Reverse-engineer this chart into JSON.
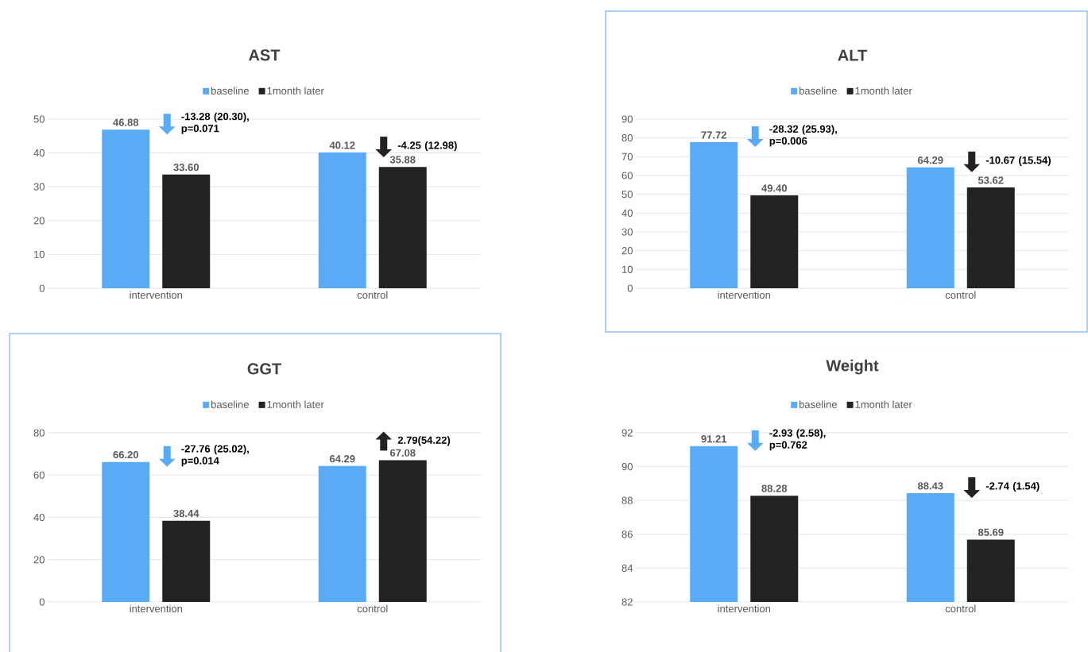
{
  "chart_data": [
    {
      "type": "bar",
      "title": "AST",
      "categories": [
        "intervention",
        "control"
      ],
      "series": [
        {
          "name": "baseline",
          "color": "#5aabf6",
          "values": [
            46.88,
            40.12
          ],
          "value_labels": [
            "46.88",
            "40.12"
          ]
        },
        {
          "name": "1month later",
          "color": "#222222",
          "values": [
            33.6,
            35.88
          ],
          "value_labels": [
            "33.60",
            "35.88"
          ]
        }
      ],
      "ylim": [
        0,
        50
      ],
      "yticks": [
        0,
        10,
        20,
        30,
        40,
        50
      ],
      "grid": "y",
      "legend": "top",
      "annotations": [
        "-13.28 (20.30), p=0.071",
        "-4.25 (12.98)"
      ]
    },
    {
      "type": "bar",
      "title": "ALT",
      "categories": [
        "intervention",
        "control"
      ],
      "series": [
        {
          "name": "baseline",
          "color": "#5aabf6",
          "values": [
            77.72,
            64.29
          ],
          "value_labels": [
            "77.72",
            "64.29"
          ]
        },
        {
          "name": "1month later",
          "color": "#222222",
          "values": [
            49.4,
            53.62
          ],
          "value_labels": [
            "49.40",
            "53.62"
          ]
        }
      ],
      "ylim": [
        0,
        90
      ],
      "yticks": [
        0,
        10,
        20,
        30,
        40,
        50,
        60,
        70,
        80,
        90
      ],
      "grid": "y",
      "legend": "top",
      "annotations": [
        "-28.32 (25.93), p=0.006",
        "-10.67 (15.54)"
      ]
    },
    {
      "type": "bar",
      "title": "GGT",
      "categories": [
        "intervention",
        "control"
      ],
      "series": [
        {
          "name": "baseline",
          "color": "#5aabf6",
          "values": [
            66.2,
            64.29
          ],
          "value_labels": [
            "66.20",
            "64.29"
          ]
        },
        {
          "name": "1month later",
          "color": "#222222",
          "values": [
            38.44,
            67.08
          ],
          "value_labels": [
            "38.44",
            "67.08"
          ]
        }
      ],
      "ylim": [
        0,
        80
      ],
      "yticks": [
        0,
        20,
        40,
        60,
        80
      ],
      "grid": "y",
      "legend": "top",
      "annotations": [
        "-27.76 (25.02), p=0.014",
        "2.79(54.22)"
      ]
    },
    {
      "type": "bar",
      "title": "Weight",
      "categories": [
        "intervention",
        "control"
      ],
      "series": [
        {
          "name": "baseline",
          "color": "#5aabf6",
          "values": [
            91.21,
            88.43
          ],
          "value_labels": [
            "91.21",
            "88.43"
          ]
        },
        {
          "name": "1month later",
          "color": "#222222",
          "values": [
            88.28,
            85.69
          ],
          "value_labels": [
            "88.28",
            "85.69"
          ]
        }
      ],
      "ylim": [
        82,
        92
      ],
      "yticks": [
        82,
        84,
        86,
        88,
        90,
        92
      ],
      "grid": "y",
      "legend": "top",
      "annotations": [
        "-2.93 (2.58), p=0.762",
        "-2.74 (1.54)"
      ]
    }
  ]
}
